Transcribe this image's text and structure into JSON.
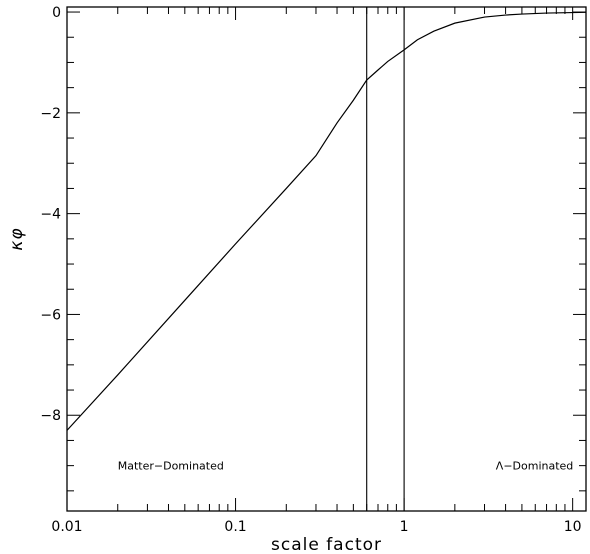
{
  "chart_data": {
    "type": "line",
    "xlabel": "scale factor",
    "ylabel": "κφ",
    "xscale": "log",
    "xlim": [
      0.01,
      12
    ],
    "ylim": [
      -9.9,
      0.1
    ],
    "xticks": [
      {
        "value": 0.01,
        "label": "0.01"
      },
      {
        "value": 0.1,
        "label": "0.1"
      },
      {
        "value": 1,
        "label": "1"
      },
      {
        "value": 10,
        "label": "10"
      }
    ],
    "yticks": [
      {
        "value": 0,
        "label": "0"
      },
      {
        "value": -2,
        "label": "−2"
      },
      {
        "value": -4,
        "label": "−4"
      },
      {
        "value": -6,
        "label": "−6"
      },
      {
        "value": -8,
        "label": "−8"
      }
    ],
    "vlines": [
      0.6,
      1.0
    ],
    "annotations": [
      {
        "text": "Matter−Dominated",
        "x": 0.02,
        "y": -9.0
      },
      {
        "text": "Λ−Dominated",
        "x": 3.5,
        "y": -9.0
      }
    ],
    "series": [
      {
        "x": [
          0.01,
          0.02,
          0.05,
          0.1,
          0.2,
          0.3,
          0.4,
          0.5,
          0.6,
          0.7,
          0.8,
          1.0,
          1.2,
          1.5,
          2.0,
          3.0,
          4.0,
          5.0,
          7.0,
          10.0,
          12.0
        ],
        "y": [
          -8.3,
          -7.2,
          -5.72,
          -4.6,
          -3.5,
          -2.85,
          -2.2,
          -1.75,
          -1.35,
          -1.15,
          -0.98,
          -0.75,
          -0.55,
          -0.38,
          -0.22,
          -0.1,
          -0.06,
          -0.04,
          -0.02,
          -0.01,
          -0.005
        ]
      }
    ]
  }
}
